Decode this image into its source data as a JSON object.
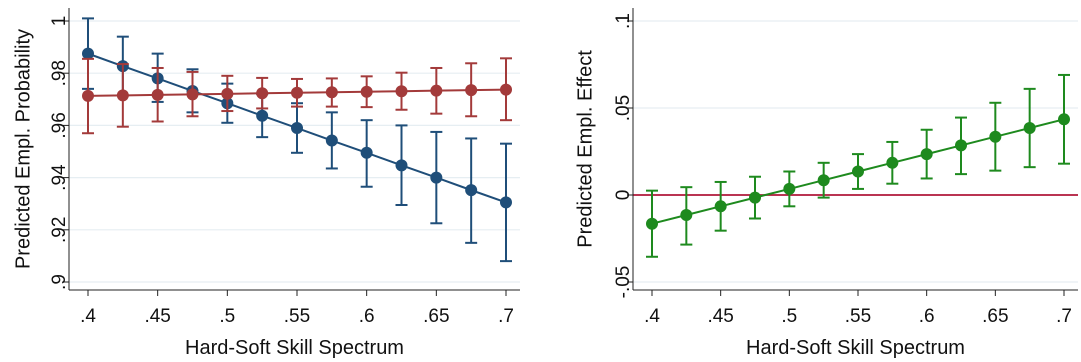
{
  "chart_data": [
    {
      "type": "line",
      "xlabel": "Hard-Soft Skill Spectrum",
      "ylabel": "Predicted Empl. Probability",
      "xlim": [
        0.4,
        0.7
      ],
      "ylim": [
        0.9,
        1.0
      ],
      "x_ticks": [
        ".4",
        ".45",
        ".5",
        ".55",
        ".6",
        ".65",
        ".7"
      ],
      "y_ticks": [
        ".9",
        ".92",
        ".94",
        ".96",
        ".98",
        "1"
      ],
      "grid": true,
      "x": [
        0.4,
        0.425,
        0.45,
        0.475,
        0.5,
        0.525,
        0.55,
        0.575,
        0.6,
        0.625,
        0.65,
        0.675,
        0.7
      ],
      "series": [
        {
          "color": "#1f4e79",
          "values": [
            0.9875,
            0.9827,
            0.978,
            0.9732,
            0.9685,
            0.9637,
            0.959,
            0.9542,
            0.9495,
            0.9447,
            0.94,
            0.9352,
            0.9305
          ],
          "ci_low": [
            0.974,
            0.9715,
            0.969,
            0.965,
            0.961,
            0.9555,
            0.9495,
            0.9435,
            0.9365,
            0.9295,
            0.9225,
            0.915,
            0.908
          ],
          "ci_high": [
            1.001,
            0.994,
            0.9875,
            0.9815,
            0.976,
            0.972,
            0.9685,
            0.965,
            0.962,
            0.96,
            0.9575,
            0.955,
            0.953
          ]
        },
        {
          "color": "#a33a3a",
          "values": [
            0.9713,
            0.9715,
            0.9717,
            0.9719,
            0.9721,
            0.9723,
            0.9725,
            0.9727,
            0.9729,
            0.9731,
            0.9733,
            0.9735,
            0.9737
          ],
          "ci_low": [
            0.957,
            0.9595,
            0.9615,
            0.9635,
            0.9655,
            0.9665,
            0.9672,
            0.9672,
            0.967,
            0.966,
            0.9645,
            0.9635,
            0.962
          ],
          "ci_high": [
            0.9855,
            0.9835,
            0.982,
            0.9805,
            0.979,
            0.9782,
            0.9778,
            0.978,
            0.9788,
            0.9802,
            0.982,
            0.9838,
            0.9857
          ]
        }
      ]
    },
    {
      "type": "line",
      "xlabel": "Hard-Soft Skill Spectrum",
      "ylabel": "Predicted Empl. Effect",
      "xlim": [
        0.4,
        0.7
      ],
      "ylim": [
        -0.05,
        0.1
      ],
      "x_ticks": [
        ".4",
        ".45",
        ".5",
        ".55",
        ".6",
        ".65",
        ".7"
      ],
      "y_ticks": [
        "-.05",
        "0",
        ".05",
        ".1"
      ],
      "grid": true,
      "reference_line": {
        "y": 0,
        "color": "#b0173a"
      },
      "x": [
        0.4,
        0.425,
        0.45,
        0.475,
        0.5,
        0.525,
        0.55,
        0.575,
        0.6,
        0.625,
        0.65,
        0.675,
        0.7
      ],
      "series": [
        {
          "color": "#1e8a1e",
          "values": [
            -0.0165,
            -0.0115,
            -0.0065,
            -0.0015,
            0.0035,
            0.0085,
            0.0135,
            0.0185,
            0.0235,
            0.0285,
            0.0335,
            0.0385,
            0.0435
          ],
          "ci_low": [
            -0.0355,
            -0.0285,
            -0.0205,
            -0.0135,
            -0.0065,
            -0.0015,
            0.0035,
            0.0065,
            0.0095,
            0.012,
            0.014,
            0.016,
            0.018
          ],
          "ci_high": [
            0.0025,
            0.0045,
            0.0075,
            0.0105,
            0.0135,
            0.0185,
            0.0235,
            0.0305,
            0.0375,
            0.0445,
            0.053,
            0.061,
            0.069
          ]
        }
      ]
    }
  ]
}
